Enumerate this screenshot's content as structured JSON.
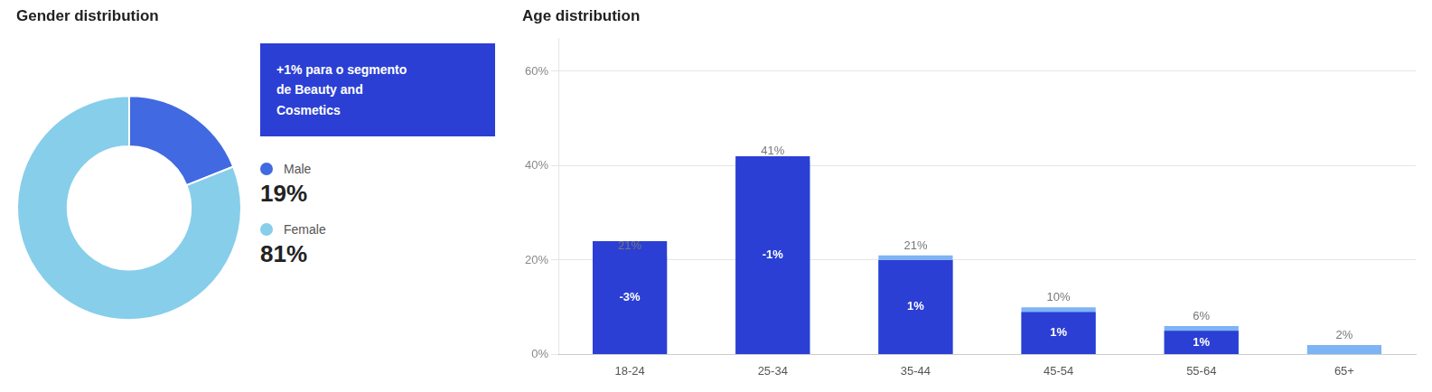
{
  "chart_data": [
    {
      "type": "doughnut",
      "title": "Gender distribution",
      "categories": [
        "Male",
        "Female"
      ],
      "values": [
        19,
        81
      ],
      "value_labels": [
        "19%",
        "81%"
      ],
      "colors": [
        "#4169E1",
        "#87CEEB"
      ],
      "legend": "right",
      "annotation": {
        "text": "+1% para o segmento\nde Beauty and\nCosmetics",
        "color": "#2B3FD4"
      }
    },
    {
      "type": "bar",
      "title": "Age distribution",
      "categories": [
        "18-24",
        "25-34",
        "35-44",
        "45-54",
        "55-64",
        "65+"
      ],
      "series": [
        {
          "color": "#7EB3F5",
          "values": [
            21,
            41,
            21,
            10,
            6,
            2
          ],
          "value_labels": [
            "21%",
            "41%",
            "21%",
            "10%",
            "6%",
            "2%"
          ],
          "data_labels": true
        },
        {
          "color": "#2B3FD4",
          "values": [
            24,
            42,
            20,
            9,
            5,
            null
          ],
          "deltas": [
            -3,
            -1,
            1,
            1,
            1,
            null
          ],
          "delta_labels": [
            "-3%",
            "-1%",
            "1%",
            "1%",
            "1%",
            null
          ]
        }
      ],
      "ylim": [
        0,
        67
      ],
      "yticks": [
        {
          "value": 0,
          "label": "0%"
        },
        {
          "value": 20,
          "label": "20%"
        },
        {
          "value": 40,
          "label": "40%"
        },
        {
          "value": 60,
          "label": "60%"
        }
      ],
      "grid": true
    }
  ]
}
